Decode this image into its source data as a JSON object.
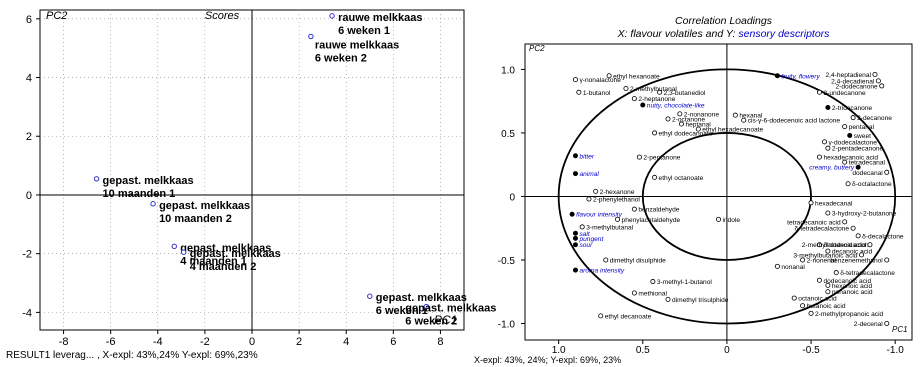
{
  "chart_data": [
    {
      "type": "scatter",
      "title": "Scores",
      "xlabel": "PC1",
      "ylabel": "PC2",
      "xlim": [
        -9,
        9
      ],
      "ylim": [
        -4.6,
        6.3
      ],
      "xticks": [
        -8,
        -6,
        -4,
        -2,
        0,
        2,
        4,
        6,
        8
      ],
      "yticks": [
        -4,
        -2,
        0,
        2,
        4,
        6
      ],
      "grid": true,
      "points": [
        {
          "x": 3.4,
          "y": 6.1,
          "label": "rauwe melkkaas\n6 weken 1"
        },
        {
          "x": 2.5,
          "y": 5.4,
          "label": "rauwe melkkaas\n6 weken 2"
        },
        {
          "x": -6.6,
          "y": 0.55,
          "label": "gepast. melkkaas\n10 maanden 1"
        },
        {
          "x": -4.2,
          "y": -0.3,
          "label": "gepast. melkkaas\n10 maanden 2"
        },
        {
          "x": -3.3,
          "y": -1.75,
          "label": "gepast. melkkaas\n4 maanden 1"
        },
        {
          "x": -2.9,
          "y": -1.95,
          "label": "gepast. melkkaas\n4 maanden 2"
        },
        {
          "x": 5.0,
          "y": -3.45,
          "label": "gepast. melkkaas\n6 weken 1"
        },
        {
          "x": 7.4,
          "y": -3.8,
          "label": "gepast. melkkaas\n6 weken 2"
        }
      ],
      "footer": "RESULT1 leverag... , X-expl: 43%,24%  Y-expl: 69%,23%"
    },
    {
      "type": "scatter",
      "title": "Correlation Loadings",
      "subtitle_prefix": "X: flavour volatiles and Y: ",
      "subtitle_highlight": "sensory descriptors",
      "xlabel": "PC1",
      "ylabel": "PC2",
      "xlim": [
        1.2,
        -1.1
      ],
      "ylim": [
        -1.13,
        1.2
      ],
      "xticks": [
        1.0,
        0.5,
        0,
        -0.5,
        -1.0
      ],
      "xtick_labels": [
        "1.0",
        "0.5",
        "0",
        "-0.5",
        "-1.0"
      ],
      "yticks": [
        1.0,
        0.5,
        0,
        -0.5,
        -1.0
      ],
      "ytick_labels": [
        "1.0",
        "0.5",
        "0",
        "-0.5",
        "-1.0"
      ],
      "circles": [
        1.0,
        0.5
      ],
      "accent_color": "#0000cc",
      "points": [
        {
          "x": 0.9,
          "y": 0.92,
          "label": "γ-nonalactone",
          "filled": false,
          "sensory": false
        },
        {
          "x": 0.88,
          "y": 0.82,
          "label": "1-butanol",
          "filled": false,
          "sensory": false
        },
        {
          "x": 0.7,
          "y": 0.95,
          "label": "ethyl hexanoate",
          "filled": false,
          "sensory": false
        },
        {
          "x": 0.6,
          "y": 0.85,
          "label": "2-methylbutanal",
          "filled": false,
          "sensory": false
        },
        {
          "x": 0.4,
          "y": 0.82,
          "label": "2,3-butanediol",
          "filled": false,
          "sensory": false
        },
        {
          "x": 0.55,
          "y": 0.77,
          "label": "2-heptanone",
          "filled": false,
          "sensory": false
        },
        {
          "x": 0.5,
          "y": 0.72,
          "label": "nutty, chocolate-like",
          "filled": true,
          "sensory": true
        },
        {
          "x": 0.28,
          "y": 0.65,
          "label": "2-nonanone",
          "filled": false,
          "sensory": false
        },
        {
          "x": 0.35,
          "y": 0.61,
          "label": "2-octanone",
          "filled": false,
          "sensory": false
        },
        {
          "x": 0.27,
          "y": 0.57,
          "label": "heptanal",
          "filled": false,
          "sensory": false
        },
        {
          "x": 0.17,
          "y": 0.53,
          "label": "ethyl hexadecanoate",
          "filled": false,
          "sensory": false
        },
        {
          "x": 0.43,
          "y": 0.5,
          "label": "ethyl dodecanoate",
          "filled": false,
          "sensory": false
        },
        {
          "x": -0.05,
          "y": 0.64,
          "label": "hexanal",
          "filled": false,
          "sensory": false
        },
        {
          "x": -0.1,
          "y": 0.6,
          "label": "cis-γ-6-dodecenoic acid lactone",
          "filled": false,
          "sensory": false
        },
        {
          "x": -0.3,
          "y": 0.95,
          "label": "fruity, flowery",
          "filled": true,
          "sensory": true
        },
        {
          "x": -0.55,
          "y": 0.82,
          "label": "2-undecanone",
          "filled": false,
          "sensory": false
        },
        {
          "x": -0.88,
          "y": 0.96,
          "label": "2,4-heptadienal",
          "filled": false,
          "sensory": false
        },
        {
          "x": -0.9,
          "y": 0.91,
          "label": "2,4-decadienal",
          "filled": false,
          "sensory": false
        },
        {
          "x": -0.92,
          "y": 0.87,
          "label": "2-dodecanone",
          "filled": false,
          "sensory": false
        },
        {
          "x": -0.6,
          "y": 0.7,
          "label": "2-tridecanone",
          "filled": true,
          "sensory": false
        },
        {
          "x": -0.75,
          "y": 0.62,
          "label": "2-decanone",
          "filled": false,
          "sensory": false
        },
        {
          "x": -0.7,
          "y": 0.55,
          "label": "pentanal",
          "filled": false,
          "sensory": false
        },
        {
          "x": -0.73,
          "y": 0.48,
          "label": "sweet",
          "filled": true,
          "sensory": false
        },
        {
          "x": -0.58,
          "y": 0.43,
          "label": "γ-dodecalactone",
          "filled": false,
          "sensory": false
        },
        {
          "x": -0.6,
          "y": 0.38,
          "label": "2-pentadecanone",
          "filled": false,
          "sensory": false
        },
        {
          "x": -0.55,
          "y": 0.31,
          "label": "hexadecanoic acid",
          "filled": false,
          "sensory": false
        },
        {
          "x": -0.7,
          "y": 0.27,
          "label": "tetradecanal",
          "filled": false,
          "sensory": false
        },
        {
          "x": -0.78,
          "y": 0.23,
          "label": "creamy, buttery",
          "filled": true,
          "sensory": true
        },
        {
          "x": -0.95,
          "y": 0.19,
          "label": "dodecanal",
          "filled": false,
          "sensory": false
        },
        {
          "x": -0.72,
          "y": 0.1,
          "label": "δ-octalactone",
          "filled": false,
          "sensory": false
        },
        {
          "x": 0.9,
          "y": 0.32,
          "label": "bitter",
          "filled": true,
          "sensory": true
        },
        {
          "x": 0.9,
          "y": 0.18,
          "label": "animal",
          "filled": true,
          "sensory": true
        },
        {
          "x": 0.52,
          "y": 0.31,
          "label": "2-pentanone",
          "filled": false,
          "sensory": false
        },
        {
          "x": 0.43,
          "y": 0.15,
          "label": "ethyl octanoate",
          "filled": false,
          "sensory": false
        },
        {
          "x": 0.78,
          "y": 0.04,
          "label": "2-hexanone",
          "filled": false,
          "sensory": false
        },
        {
          "x": 0.82,
          "y": -0.02,
          "label": "2-phenylethanol",
          "filled": false,
          "sensory": false
        },
        {
          "x": 0.55,
          "y": -0.1,
          "label": "benzaldehyde",
          "filled": false,
          "sensory": false
        },
        {
          "x": 0.92,
          "y": -0.14,
          "label": "flavour intensity",
          "filled": true,
          "sensory": true
        },
        {
          "x": 0.65,
          "y": -0.18,
          "label": "phenylacetaldehyde",
          "filled": false,
          "sensory": false
        },
        {
          "x": 0.86,
          "y": -0.24,
          "label": "3-methylbutanal",
          "filled": false,
          "sensory": false
        },
        {
          "x": 0.9,
          "y": -0.29,
          "label": "salt",
          "filled": true,
          "sensory": true
        },
        {
          "x": 0.9,
          "y": -0.33,
          "label": "pungent",
          "filled": true,
          "sensory": true
        },
        {
          "x": 0.9,
          "y": -0.38,
          "label": "sour",
          "filled": true,
          "sensory": true
        },
        {
          "x": 0.05,
          "y": -0.18,
          "label": "indole",
          "filled": false,
          "sensory": false
        },
        {
          "x": -0.5,
          "y": -0.05,
          "label": "hexadecanal",
          "filled": false,
          "sensory": false
        },
        {
          "x": -0.6,
          "y": -0.13,
          "label": "3-hydroxy-2-butanone",
          "filled": false,
          "sensory": false
        },
        {
          "x": -0.7,
          "y": -0.2,
          "label": "tetradecanoic acid",
          "filled": false,
          "sensory": false
        },
        {
          "x": -0.75,
          "y": -0.25,
          "label": "δ-tetradecalactone",
          "filled": false,
          "sensory": false
        },
        {
          "x": -0.78,
          "y": -0.31,
          "label": "δ-decalactone",
          "filled": false,
          "sensory": false
        },
        {
          "x": -0.55,
          "y": -0.38,
          "label": "δ-dodecalactone",
          "filled": false,
          "sensory": false
        },
        {
          "x": -0.85,
          "y": -0.38,
          "label": "2-methylbutanoic acid",
          "filled": false,
          "sensory": false
        },
        {
          "x": -0.6,
          "y": -0.43,
          "label": "decanoic acid",
          "filled": false,
          "sensory": false
        },
        {
          "x": -0.8,
          "y": -0.46,
          "label": "3-methylbutanoic acid",
          "filled": false,
          "sensory": false
        },
        {
          "x": -0.95,
          "y": -0.5,
          "label": "benzenemethanol",
          "filled": false,
          "sensory": false
        },
        {
          "x": 0.72,
          "y": -0.5,
          "label": "dimethyl disulphide",
          "filled": false,
          "sensory": false
        },
        {
          "x": 0.9,
          "y": -0.58,
          "label": "aroma intensity",
          "filled": true,
          "sensory": true
        },
        {
          "x": -0.45,
          "y": -0.5,
          "label": "2-nonenal",
          "filled": false,
          "sensory": false
        },
        {
          "x": -0.3,
          "y": -0.55,
          "label": "nonanal",
          "filled": false,
          "sensory": false
        },
        {
          "x": -0.65,
          "y": -0.6,
          "label": "δ-tetradecalactone",
          "filled": false,
          "sensory": false
        },
        {
          "x": -0.55,
          "y": -0.66,
          "label": "dodecanoic acid",
          "filled": false,
          "sensory": false
        },
        {
          "x": -0.6,
          "y": -0.7,
          "label": "hexanoic acid",
          "filled": false,
          "sensory": false
        },
        {
          "x": -0.6,
          "y": -0.75,
          "label": "nonanoic acid",
          "filled": false,
          "sensory": false
        },
        {
          "x": 0.44,
          "y": -0.67,
          "label": "3-methyl-1-butanol",
          "filled": false,
          "sensory": false
        },
        {
          "x": 0.55,
          "y": -0.76,
          "label": "methional",
          "filled": false,
          "sensory": false
        },
        {
          "x": 0.35,
          "y": -0.81,
          "label": "dimethyl trisulphide",
          "filled": false,
          "sensory": false
        },
        {
          "x": -0.4,
          "y": -0.8,
          "label": "octanoic acid",
          "filled": false,
          "sensory": false
        },
        {
          "x": -0.45,
          "y": -0.86,
          "label": "butanoic acid",
          "filled": false,
          "sensory": false
        },
        {
          "x": -0.5,
          "y": -0.92,
          "label": "2-methylpropanoic acid",
          "filled": false,
          "sensory": false
        },
        {
          "x": 0.75,
          "y": -0.94,
          "label": "ethyl decanoate",
          "filled": false,
          "sensory": false
        },
        {
          "x": -0.95,
          "y": -1.0,
          "label": "2-decenal",
          "filled": false,
          "sensory": false
        }
      ],
      "footer": "X-expl: 43%, 24%; Y-expl: 69%, 23%"
    }
  ]
}
